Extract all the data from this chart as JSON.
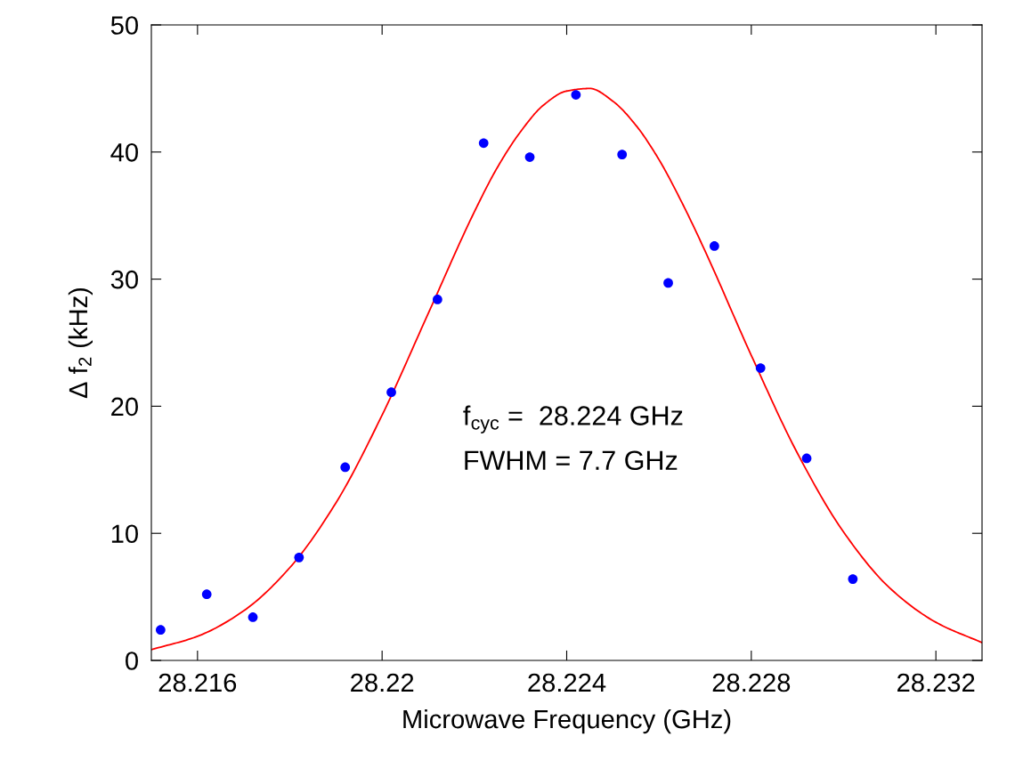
{
  "chart_data": {
    "type": "scatter",
    "xlabel": "Microwave Frequency (GHz)",
    "ylabel": "Δ f$_{2}$ (kHz)",
    "annotations": [
      "f$_{cyc}$ =  28.224 GHz",
      "FWHM = 7.7 GHz"
    ],
    "xlim": [
      28.215,
      28.233
    ],
    "xticks": [
      28.216,
      28.22,
      28.224,
      28.228,
      28.232
    ],
    "ylim": [
      0,
      50
    ],
    "yticks": [
      0,
      10,
      20,
      30,
      40,
      50
    ],
    "grid": false,
    "legend": false,
    "series": [
      {
        "color": "#0000ff",
        "marker": "circle",
        "x": [
          28.2152,
          28.2162,
          28.2172,
          28.2182,
          28.2192,
          28.2202,
          28.2212,
          28.2222,
          28.2232,
          28.2242,
          28.2252,
          28.2262,
          28.2272,
          28.2282,
          28.2292,
          28.2302
        ],
        "values": [
          2.4,
          5.2,
          3.4,
          8.1,
          15.2,
          21.1,
          28.4,
          40.7,
          39.6,
          44.5,
          39.8,
          29.7,
          32.6,
          23.0,
          15.9,
          6.4
        ]
      },
      {
        "type": "line",
        "color": "#ff0000",
        "line_style": "solid",
        "marker": "none",
        "x": [
          28.215,
          28.216,
          28.217,
          28.218,
          28.219,
          28.22,
          28.221,
          28.222,
          28.2225,
          28.223,
          28.2235,
          28.224,
          28.2245,
          28.225,
          28.2255,
          28.226,
          28.2265,
          28.227,
          28.228,
          28.229,
          28.23,
          28.231,
          28.232,
          28.233
        ],
        "values": [
          0.85,
          1.9,
          3.9,
          7.3,
          12.4,
          19.3,
          27.3,
          35.3,
          38.8,
          41.6,
          43.7,
          44.8,
          45.0,
          44.0,
          42.1,
          39.4,
          36.0,
          32.2,
          24.0,
          16.3,
          10.1,
          5.7,
          3.0,
          1.4
        ]
      }
    ]
  }
}
